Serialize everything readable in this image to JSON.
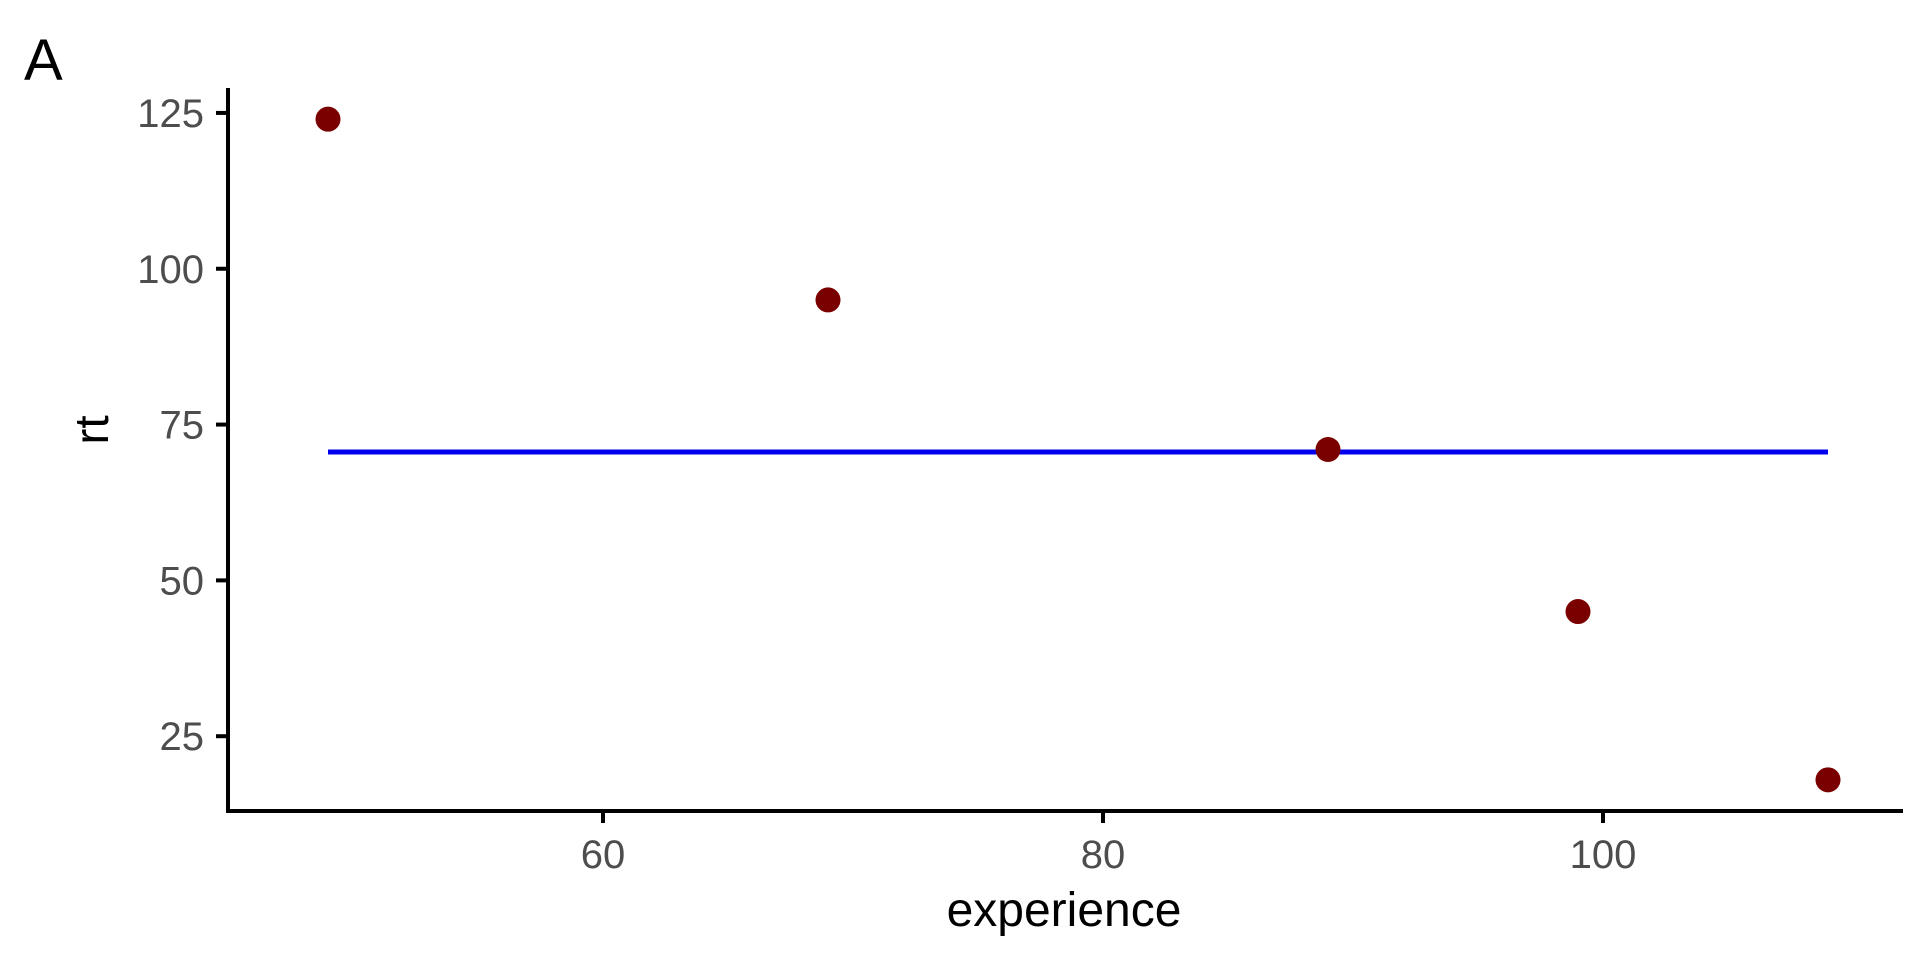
{
  "chart_data": {
    "type": "scatter",
    "panel_label": "A",
    "xlabel": "experience",
    "ylabel": "rt",
    "xlim": [
      45,
      112
    ],
    "ylim": [
      13,
      129
    ],
    "x_ticks": [
      60,
      80,
      100
    ],
    "y_ticks": [
      25,
      50,
      75,
      100,
      125
    ],
    "grid": false,
    "legend": "none",
    "points": [
      {
        "x": 49,
        "y": 124
      },
      {
        "x": 69,
        "y": 95
      },
      {
        "x": 89,
        "y": 71
      },
      {
        "x": 99,
        "y": 45
      },
      {
        "x": 109,
        "y": 18
      }
    ],
    "reference_line": {
      "x_start": 49,
      "x_end": 109,
      "y": 70.6
    },
    "colors": {
      "points": "#7a0000",
      "line": "#0000ee",
      "axis": "#000000",
      "tick_text": "#4d4d4d"
    }
  }
}
